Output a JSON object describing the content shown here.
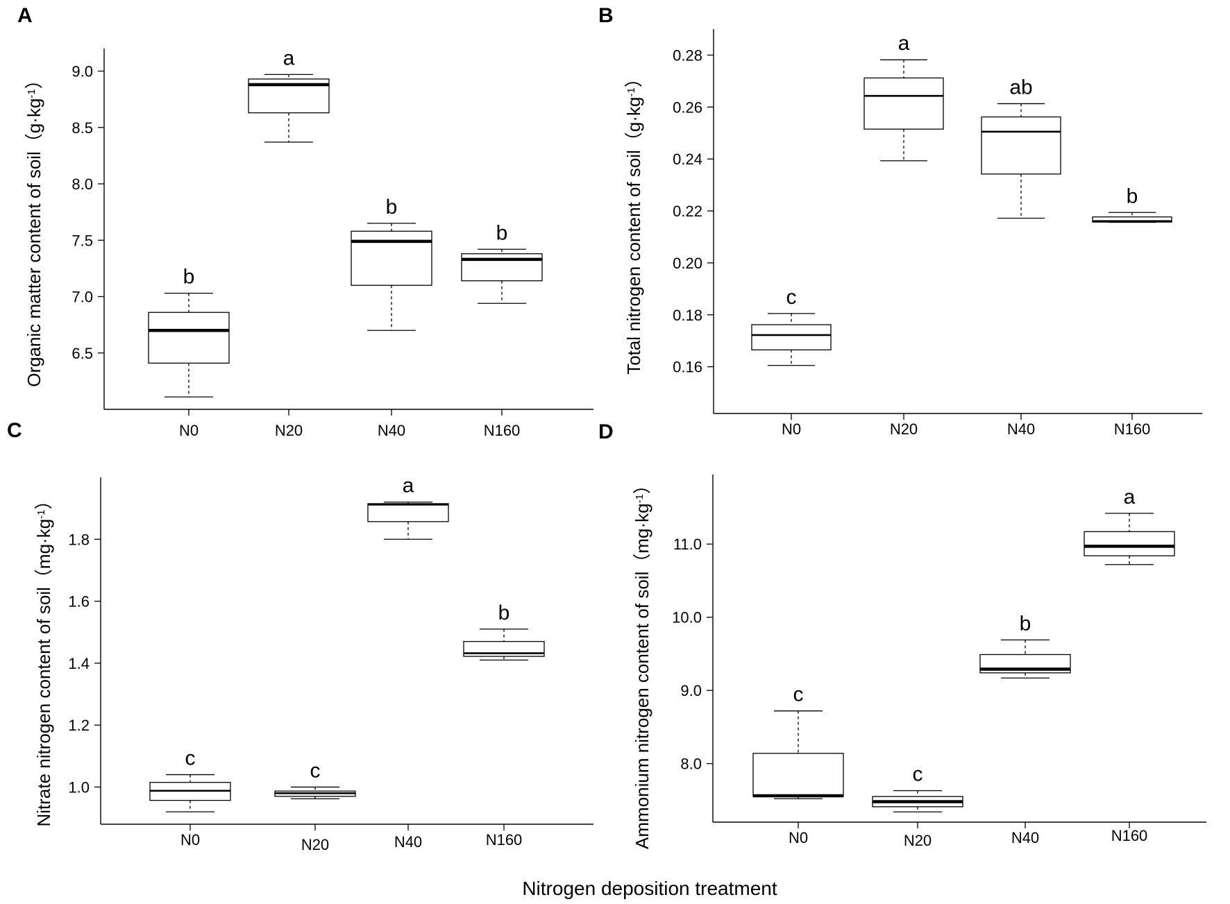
{
  "figure": {
    "shared_xlabel": "Nitrogen deposition treatment"
  },
  "chart_data": [
    {
      "panel": "A",
      "type": "box",
      "categories": [
        "N0",
        "N20",
        "N40",
        "N160"
      ],
      "ylabel_main": "Organic matter content of soil（g·kg",
      "ylabel_sup": "-1",
      "ylabel_end": "）",
      "ylim": [
        6.0,
        9.2
      ],
      "yticks": [
        6.5,
        7.0,
        7.5,
        8.0,
        8.5,
        9.0
      ],
      "tick_decimals": 1,
      "median_width": "thick",
      "boxes": [
        {
          "category": "N0",
          "whisker_low": 6.11,
          "q1": 6.41,
          "median": 6.7,
          "q3": 6.86,
          "whisker_high": 7.03,
          "letter": "b"
        },
        {
          "category": "N20",
          "whisker_low": 8.37,
          "q1": 8.63,
          "median": 8.88,
          "q3": 8.93,
          "whisker_high": 8.97,
          "letter": "a"
        },
        {
          "category": "N40",
          "whisker_low": 6.7,
          "q1": 7.1,
          "median": 7.49,
          "q3": 7.58,
          "whisker_high": 7.65,
          "letter": "b"
        },
        {
          "category": "N160",
          "whisker_low": 6.94,
          "q1": 7.14,
          "median": 7.33,
          "q3": 7.38,
          "whisker_high": 7.42,
          "letter": "b"
        }
      ]
    },
    {
      "panel": "B",
      "type": "box",
      "categories": [
        "N0",
        "N20",
        "N40",
        "N160"
      ],
      "ylabel_main": "Total nitrogen content of soil（g·kg",
      "ylabel_sup": "-1",
      "ylabel_end": "）",
      "ylim": [
        0.142,
        0.29
      ],
      "yticks": [
        0.16,
        0.18,
        0.2,
        0.22,
        0.24,
        0.26,
        0.28
      ],
      "tick_decimals": 2,
      "median_width": "medium",
      "boxes": [
        {
          "category": "N0",
          "whisker_low": 0.1605,
          "q1": 0.1665,
          "median": 0.1722,
          "q3": 0.1762,
          "whisker_high": 0.1805,
          "letter": "c"
        },
        {
          "category": "N20",
          "whisker_low": 0.2393,
          "q1": 0.2515,
          "median": 0.2643,
          "q3": 0.2712,
          "whisker_high": 0.2782,
          "letter": "a"
        },
        {
          "category": "N40",
          "whisker_low": 0.2172,
          "q1": 0.2342,
          "median": 0.2505,
          "q3": 0.2562,
          "whisker_high": 0.2613,
          "letter": "ab"
        },
        {
          "category": "N160",
          "whisker_low": 0.2156,
          "q1": 0.2157,
          "median": 0.2161,
          "q3": 0.2177,
          "whisker_high": 0.2194,
          "letter": "b"
        }
      ]
    },
    {
      "panel": "C",
      "type": "box",
      "categories": [
        "N0",
        "N20",
        "N40",
        "N160"
      ],
      "ylabel_main": "Nitrate nitrogen content of soil（mg·kg",
      "ylabel_sup": "-1",
      "ylabel_end": "）",
      "ylim": [
        0.88,
        2.0
      ],
      "yticks": [
        1.0,
        1.2,
        1.4,
        1.6,
        1.8
      ],
      "tick_decimals": 1,
      "median_width": "medium",
      "boxes": [
        {
          "category": "N0",
          "whisker_low": 0.92,
          "q1": 0.957,
          "median": 0.988,
          "q3": 1.015,
          "whisker_high": 1.04,
          "letter": "c"
        },
        {
          "category": "N20",
          "whisker_low": 0.962,
          "q1": 0.97,
          "median": 0.98,
          "q3": 0.987,
          "whisker_high": 1.0,
          "letter": "c"
        },
        {
          "category": "N40",
          "whisker_low": 1.8,
          "q1": 1.857,
          "median": 1.912,
          "q3": 1.915,
          "whisker_high": 1.92,
          "letter": "a"
        },
        {
          "category": "N160",
          "whisker_low": 1.41,
          "q1": 1.422,
          "median": 1.432,
          "q3": 1.47,
          "whisker_high": 1.51,
          "letter": "b"
        }
      ]
    },
    {
      "panel": "D",
      "type": "box",
      "categories": [
        "N0",
        "N20",
        "N40",
        "N160"
      ],
      "ylabel_main": "Ammonium nitrogen content of soil（mg·kg",
      "ylabel_sup": "-1",
      "ylabel_end": "）",
      "ylim": [
        7.2,
        11.95
      ],
      "yticks": [
        8.0,
        9.0,
        10.0,
        11.0
      ],
      "tick_decimals": 1,
      "median_width": "thick",
      "boxes": [
        {
          "category": "N0",
          "whisker_low": 7.52,
          "q1": 7.55,
          "median": 7.56,
          "q3": 8.14,
          "whisker_high": 8.72,
          "letter": "c"
        },
        {
          "category": "N20",
          "whisker_low": 7.34,
          "q1": 7.41,
          "median": 7.48,
          "q3": 7.55,
          "whisker_high": 7.63,
          "letter": "c"
        },
        {
          "category": "N40",
          "whisker_low": 9.17,
          "q1": 9.24,
          "median": 9.29,
          "q3": 9.49,
          "whisker_high": 9.69,
          "letter": "b"
        },
        {
          "category": "N160",
          "whisker_low": 10.72,
          "q1": 10.84,
          "median": 10.97,
          "q3": 11.17,
          "whisker_high": 11.42,
          "letter": "a"
        }
      ]
    }
  ]
}
